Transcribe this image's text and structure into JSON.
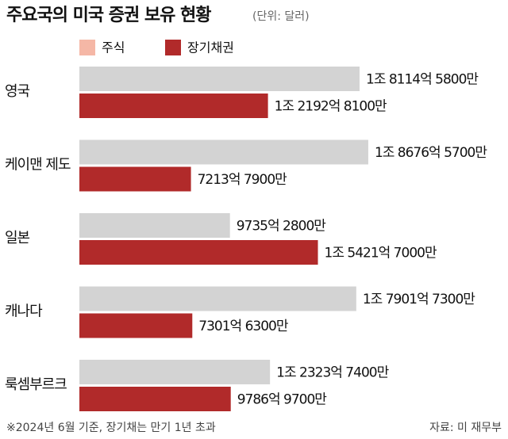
{
  "chart_data": {
    "type": "bar",
    "orientation": "horizontal",
    "title": "주요국의 미국 증권 보유 현황",
    "subtitle": "(단위: 달러)",
    "categories": [
      "영국",
      "케이맨 제도",
      "일본",
      "캐나다",
      "룩셈부르크"
    ],
    "series": [
      {
        "name": "주식",
        "color": "#d3d3d3",
        "legend_color": "#f5b7a6",
        "values": [
          1811458000000,
          1867657000000,
          973528000000,
          1790173000000,
          1232374000000
        ],
        "value_labels": [
          "1조 8114억 5800만",
          "1조 8676억 5700만",
          "9735억 2800만",
          "1조 7901억 7300만",
          "1조 2323억 7400만"
        ]
      },
      {
        "name": "장기채권",
        "color": "#b12a2a",
        "legend_color": "#b12a2a",
        "values": [
          1219281000000,
          721379000000,
          1542170000000,
          730163000000,
          978697000000
        ],
        "value_labels": [
          "1조 2192억 8100만",
          "7213억 7900만",
          "1조 5421억 7000만",
          "7301억 6300만",
          "9786억 9700만"
        ]
      }
    ],
    "footnote": "※2024년 6월 기준, 장기채는 만기 1년 초과",
    "source": "자료: 미 재무부"
  }
}
